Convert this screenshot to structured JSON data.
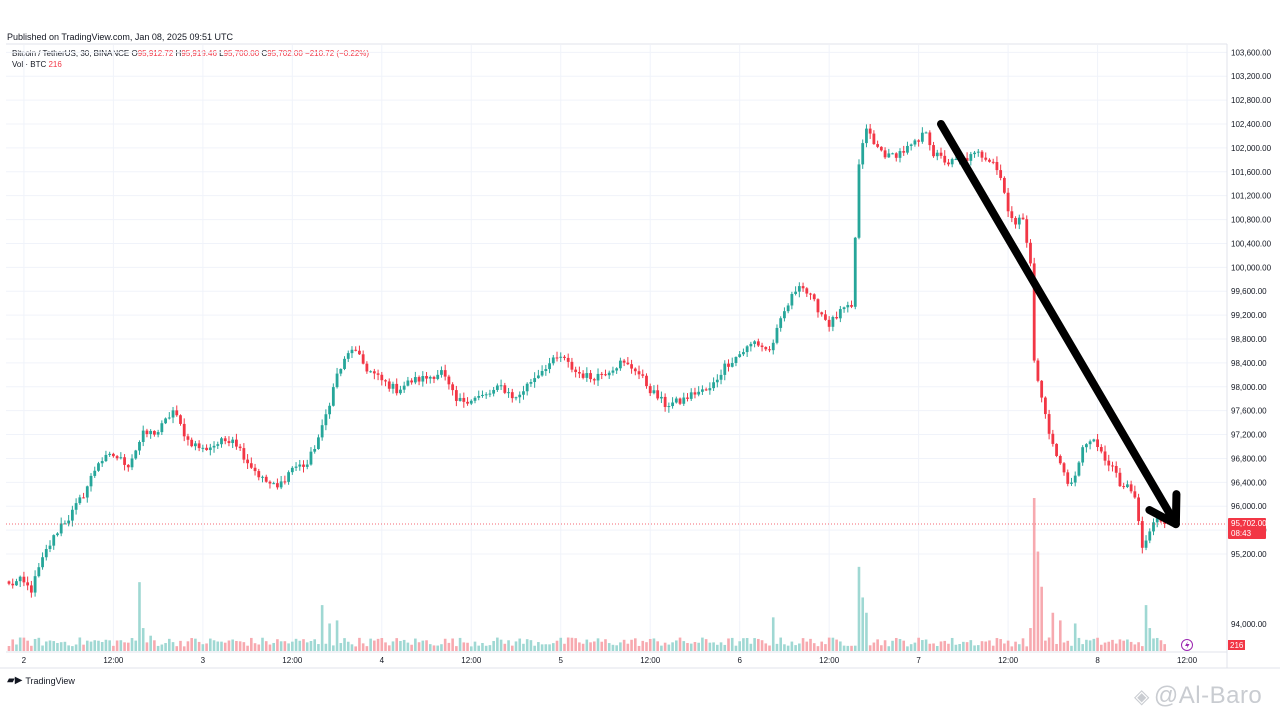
{
  "header": {
    "published": "Published on TradingView.com, Jan 08, 2025 09:51 UTC",
    "symbol": "Bitcoin / TetherUS, 30, BINANCE",
    "open_label": "O",
    "open_value": "95,912.72",
    "high_label": "H",
    "high_value": "95,919.46",
    "low_label": "L",
    "low_value": "95,700.00",
    "close_label": "C",
    "close_value": "95,702.00",
    "change": "−210.72 (−0.22%)",
    "vol_label": "Vol · BTC",
    "vol_value": "216"
  },
  "footer": {
    "logo_text": "TradingView",
    "watermark": "@Al-Baro"
  },
  "colors": {
    "up": "#26a69a",
    "down": "#f23645",
    "up_vol": "#9fd8d3",
    "down_vol": "#f7a9af",
    "arrow": "#000000",
    "grid": "#f0f3fa"
  },
  "chart_data": {
    "type": "candlestick",
    "symbol": "BTCUSDT",
    "interval": "30",
    "ylim": [
      95000,
      103700
    ],
    "y_ticks": [
      95200,
      95600,
      96000,
      96400,
      96800,
      97200,
      97600,
      98000,
      98400,
      98800,
      99200,
      99600,
      100000,
      100400,
      100800,
      101200,
      101600,
      102000,
      102400,
      102800,
      103200,
      103600
    ],
    "y_tick_labels": [
      "95,200.00",
      "95,600.00",
      "96,000.00",
      "96,400.00",
      "96,800.00",
      "97,200.00",
      "97,600.00",
      "98,000.00",
      "98,400.00",
      "98,800.00",
      "99,200.00",
      "99,600.00",
      "100,000.00",
      "100,400.00",
      "100,800.00",
      "101,200.00",
      "101,600.00",
      "102,000.00",
      "102,400.00",
      "102,800.00",
      "103,200.00",
      "103,600.00"
    ],
    "x_ticks": [
      {
        "index": 4,
        "label": "2"
      },
      {
        "index": 28,
        "label": "12:00"
      },
      {
        "index": 52,
        "label": "3"
      },
      {
        "index": 76,
        "label": "12:00"
      },
      {
        "index": 100,
        "label": "4"
      },
      {
        "index": 124,
        "label": "12:00"
      },
      {
        "index": 148,
        "label": "5"
      },
      {
        "index": 172,
        "label": "12:00"
      },
      {
        "index": 196,
        "label": "6"
      },
      {
        "index": 220,
        "label": "12:00"
      },
      {
        "index": 244,
        "label": "7"
      },
      {
        "index": 268,
        "label": "12:00"
      },
      {
        "index": 292,
        "label": "8"
      },
      {
        "index": 316,
        "label": "12:00"
      }
    ],
    "volume_axis_label": "94,000.00",
    "price_label": "95,702.00",
    "countdown_label": "08:43",
    "volume_label": "216",
    "last_price": 95702,
    "anchors": [
      [
        0,
        94680
      ],
      [
        3,
        94750
      ],
      [
        6,
        94600
      ],
      [
        8,
        94950
      ],
      [
        10,
        95250
      ],
      [
        14,
        95700
      ],
      [
        16,
        95800
      ],
      [
        20,
        96200
      ],
      [
        24,
        96750
      ],
      [
        28,
        96850
      ],
      [
        32,
        96700
      ],
      [
        36,
        97200
      ],
      [
        40,
        97250
      ],
      [
        44,
        97600
      ],
      [
        48,
        97100
      ],
      [
        52,
        96950
      ],
      [
        56,
        97050
      ],
      [
        60,
        97150
      ],
      [
        64,
        96750
      ],
      [
        68,
        96450
      ],
      [
        72,
        96300
      ],
      [
        76,
        96650
      ],
      [
        80,
        96700
      ],
      [
        84,
        97300
      ],
      [
        88,
        98200
      ],
      [
        92,
        98650
      ],
      [
        96,
        98300
      ],
      [
        100,
        98100
      ],
      [
        104,
        97950
      ],
      [
        108,
        98100
      ],
      [
        112,
        98150
      ],
      [
        116,
        98250
      ],
      [
        120,
        97750
      ],
      [
        124,
        97800
      ],
      [
        128,
        97850
      ],
      [
        132,
        98000
      ],
      [
        136,
        97800
      ],
      [
        140,
        98100
      ],
      [
        144,
        98350
      ],
      [
        148,
        98500
      ],
      [
        152,
        98250
      ],
      [
        156,
        98150
      ],
      [
        160,
        98250
      ],
      [
        164,
        98400
      ],
      [
        168,
        98300
      ],
      [
        172,
        97950
      ],
      [
        176,
        97700
      ],
      [
        180,
        97750
      ],
      [
        184,
        97900
      ],
      [
        188,
        97950
      ],
      [
        192,
        98350
      ],
      [
        196,
        98550
      ],
      [
        200,
        98750
      ],
      [
        204,
        98600
      ],
      [
        208,
        99250
      ],
      [
        212,
        99750
      ],
      [
        216,
        99400
      ],
      [
        220,
        99050
      ],
      [
        224,
        99300
      ],
      [
        226,
        99300
      ],
      [
        228,
        101700
      ],
      [
        230,
        102350
      ],
      [
        232,
        102050
      ],
      [
        236,
        101850
      ],
      [
        240,
        101950
      ],
      [
        244,
        102100
      ],
      [
        246,
        102300
      ],
      [
        248,
        101900
      ],
      [
        252,
        101750
      ],
      [
        256,
        101800
      ],
      [
        260,
        101900
      ],
      [
        264,
        101800
      ],
      [
        266,
        101500
      ],
      [
        268,
        101000
      ],
      [
        270,
        100700
      ],
      [
        272,
        100850
      ],
      [
        274,
        100100
      ],
      [
        275,
        98400
      ],
      [
        277,
        97800
      ],
      [
        280,
        97000
      ],
      [
        282,
        96700
      ],
      [
        284,
        96400
      ],
      [
        286,
        96500
      ],
      [
        288,
        96950
      ],
      [
        290,
        97150
      ],
      [
        292,
        96950
      ],
      [
        294,
        96800
      ],
      [
        296,
        96650
      ],
      [
        298,
        96350
      ],
      [
        300,
        96300
      ],
      [
        302,
        96150
      ],
      [
        304,
        95300
      ],
      [
        306,
        95550
      ],
      [
        308,
        95850
      ],
      [
        310,
        95702
      ]
    ],
    "volume_spikes": [
      [
        35,
        0.45
      ],
      [
        36,
        0.15
      ],
      [
        38,
        0.1
      ],
      [
        84,
        0.3
      ],
      [
        86,
        0.18
      ],
      [
        88,
        0.2
      ],
      [
        205,
        0.22
      ],
      [
        228,
        0.55
      ],
      [
        229,
        0.35
      ],
      [
        230,
        0.25
      ],
      [
        274,
        0.15
      ],
      [
        275,
        1.0
      ],
      [
        276,
        0.65
      ],
      [
        277,
        0.42
      ],
      [
        280,
        0.25
      ],
      [
        282,
        0.2
      ],
      [
        286,
        0.18
      ],
      [
        305,
        0.3
      ],
      [
        306,
        0.15
      ]
    ],
    "annotation": {
      "type": "arrow",
      "from": {
        "index": 250,
        "value": 102400
      },
      "to": {
        "index": 313,
        "value": 95700
      }
    }
  }
}
